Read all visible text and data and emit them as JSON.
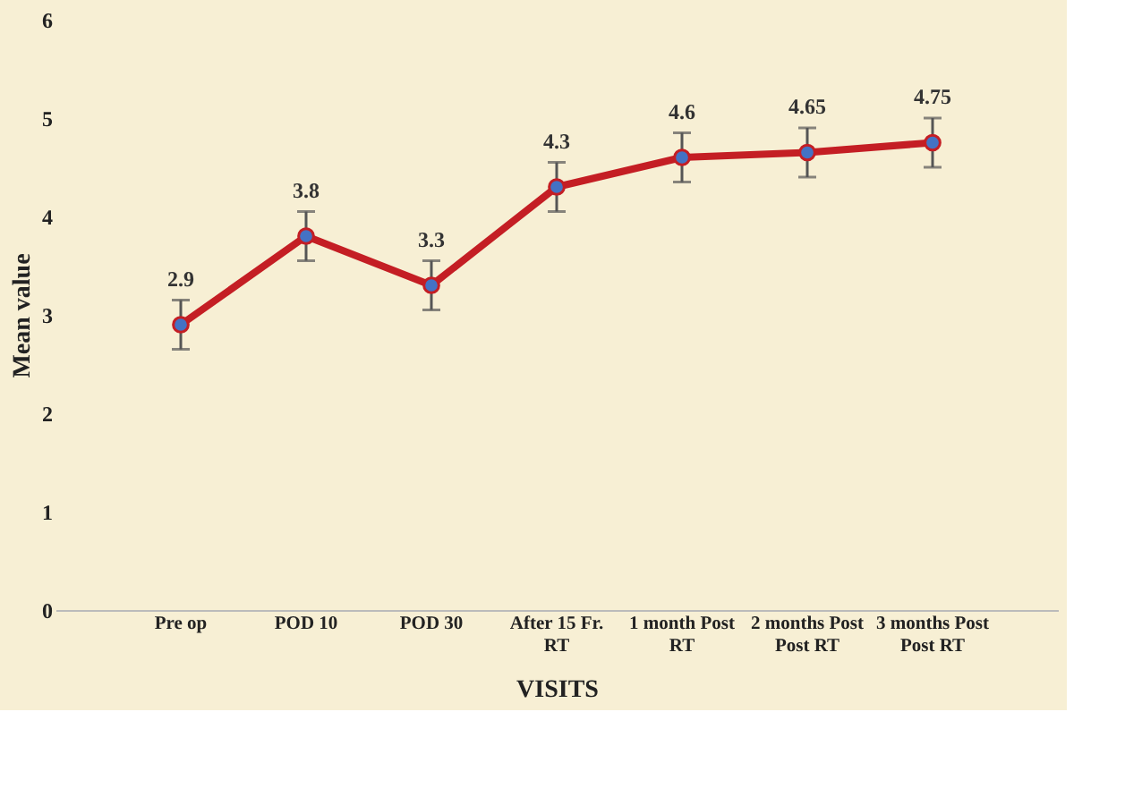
{
  "chart_data": {
    "type": "line",
    "xlabel": "VISITS",
    "ylabel": "Mean value",
    "categories": [
      "Pre op",
      "POD 10",
      "POD 30",
      "After 15 Fr. RT",
      "1 month Post RT",
      "2 months Post Post RT",
      "3 months Post Post RT"
    ],
    "series": [
      {
        "color": "#c41e24",
        "values": [
          2.9,
          3.8,
          3.3,
          4.3,
          4.6,
          4.65,
          4.75
        ],
        "errors": [
          0.25,
          0.25,
          0.25,
          0.25,
          0.25,
          0.25,
          0.25
        ]
      }
    ],
    "ylim": [
      0,
      6
    ],
    "yticks": [
      0,
      1,
      2,
      3,
      4,
      5,
      6
    ],
    "grid": false,
    "data_labels": true,
    "marker": "circle",
    "line_style": "solid"
  }
}
